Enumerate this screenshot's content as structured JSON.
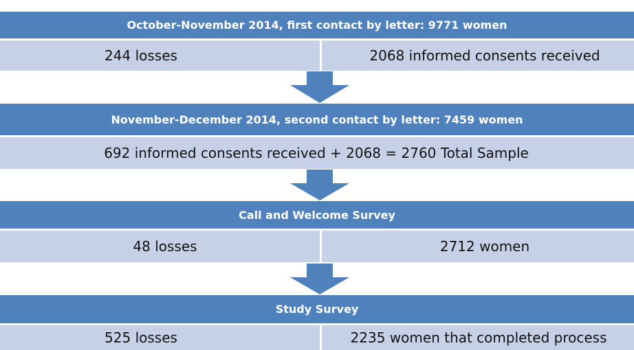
{
  "stages": [
    {
      "header": "October-November 2014, first contact by letter: 9771 women",
      "cells": [
        "244 losses",
        "2068 informed consents received"
      ]
    },
    {
      "header": "November-December 2014, second contact by letter: 7459 women",
      "cells": [
        "692 informed consents received + 2068 = 2760 Total Sample"
      ]
    },
    {
      "header": "Call and Welcome Survey",
      "cells": [
        "48 losses",
        "2712 women"
      ]
    },
    {
      "header": "Study Survey",
      "cells": [
        "525 losses",
        "2235 women that completed process"
      ]
    }
  ]
}
